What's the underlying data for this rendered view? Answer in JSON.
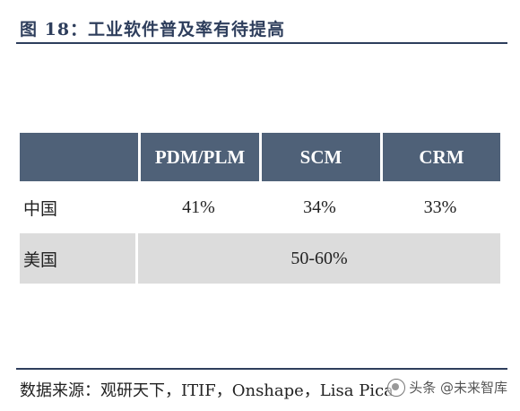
{
  "title": "图 18：工业软件普及率有待提高",
  "table": {
    "headers": [
      "",
      "PDM/PLM",
      "SCM",
      "CRM"
    ],
    "rows": [
      {
        "label": "中国",
        "values": [
          "41%",
          "34%",
          "33%"
        ]
      },
      {
        "label": "美国",
        "merged_value": "50-60%"
      }
    ]
  },
  "source": "数据来源：观研天下，ITIF，Onshape，Lisa Pica",
  "watermark": "头条 @未来智库"
}
